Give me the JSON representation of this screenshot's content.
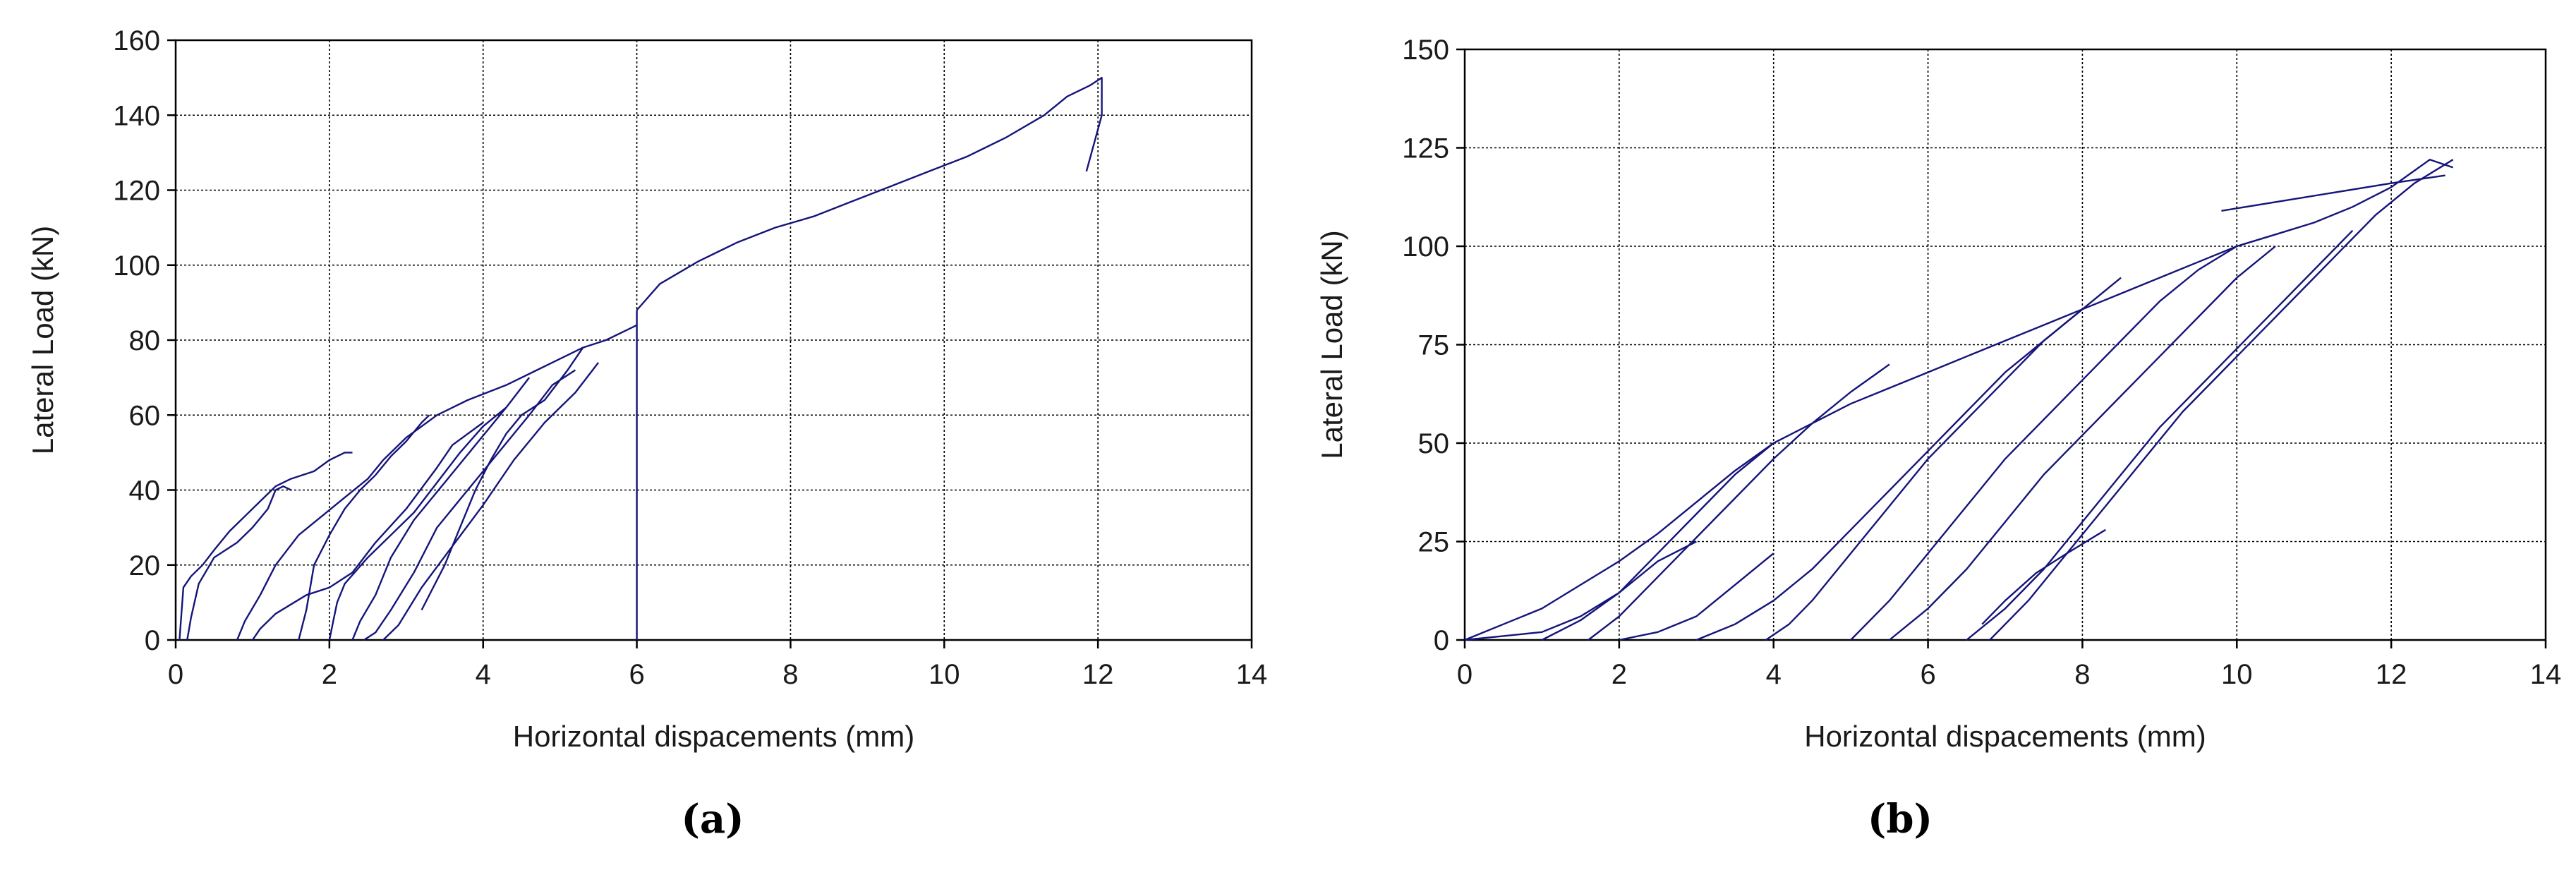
{
  "chart_data": [
    {
      "type": "line",
      "panel_label": "(a)",
      "xlabel": "Horizontal dispacements  (mm)",
      "ylabel": "Lateral Load (kN)",
      "xlim": [
        0,
        14
      ],
      "ylim": [
        0,
        160
      ],
      "xticks": [
        0,
        2,
        4,
        6,
        8,
        10,
        12,
        14
      ],
      "yticks": [
        0,
        20,
        40,
        60,
        80,
        100,
        120,
        140,
        160
      ],
      "grid": true,
      "color": "#15157a",
      "series": [
        {
          "x": [
            0.05,
            0.1,
            0.2,
            0.35,
            0.5,
            0.7,
            0.9,
            1.1,
            1.3,
            1.5,
            1.8,
            2.0,
            2.2,
            2.3
          ],
          "y": [
            0,
            14,
            17,
            20,
            24,
            29,
            33,
            37,
            41,
            43,
            45,
            48,
            50,
            50
          ]
        },
        {
          "x": [
            0.15,
            0.2,
            0.3,
            0.5,
            0.8,
            1.0,
            1.2,
            1.3,
            1.4,
            1.5
          ],
          "y": [
            0,
            6,
            15,
            22,
            26,
            30,
            35,
            40,
            41,
            40
          ]
        },
        {
          "x": [
            0.8,
            0.9,
            1.1,
            1.3,
            1.6,
            1.9,
            2.2,
            2.5,
            2.7,
            3.0,
            3.4,
            3.8,
            4.3,
            4.7,
            5.0,
            5.3,
            5.6,
            6.0
          ],
          "y": [
            0,
            5,
            12,
            20,
            28,
            33,
            38,
            43,
            48,
            54,
            60,
            64,
            68,
            72,
            75,
            78,
            80,
            84
          ]
        },
        {
          "x": [
            1.0,
            1.1,
            1.3,
            1.7,
            2.0,
            2.3,
            2.6,
            3.0,
            3.4,
            3.6,
            4.0
          ],
          "y": [
            0,
            3,
            7,
            12,
            14,
            18,
            26,
            35,
            46,
            52,
            58
          ]
        },
        {
          "x": [
            1.6,
            1.7,
            1.8,
            2.0,
            2.2,
            2.4,
            2.6,
            2.8,
            3.0,
            3.2,
            3.3
          ],
          "y": [
            0,
            8,
            20,
            28,
            35,
            40,
            44,
            49,
            53,
            58,
            60
          ]
        },
        {
          "x": [
            2.0,
            2.05,
            2.1,
            2.2,
            2.5,
            2.8,
            3.1,
            3.4,
            3.7,
            4.0,
            4.3
          ],
          "y": [
            0,
            5,
            10,
            15,
            22,
            28,
            34,
            42,
            50,
            57,
            62
          ]
        },
        {
          "x": [
            2.3,
            2.4,
            2.6,
            2.8,
            3.1,
            3.5,
            3.9,
            4.3,
            4.6
          ],
          "y": [
            0,
            5,
            12,
            22,
            32,
            42,
            52,
            62,
            70
          ]
        },
        {
          "x": [
            2.45,
            2.6,
            2.8,
            3.1,
            3.4,
            3.8,
            4.2,
            4.6,
            4.9,
            5.2
          ],
          "y": [
            0,
            2,
            8,
            18,
            30,
            40,
            50,
            60,
            68,
            72
          ]
        },
        {
          "x": [
            2.7,
            2.9,
            3.2,
            3.6,
            4.0,
            4.4,
            4.8,
            5.2,
            5.5
          ],
          "y": [
            0,
            4,
            14,
            25,
            36,
            48,
            58,
            66,
            74
          ]
        },
        {
          "x": [
            3.2,
            3.5,
            3.7,
            3.9,
            4.1,
            4.3,
            4.5,
            4.8,
            5.1,
            5.3
          ],
          "y": [
            8,
            20,
            30,
            40,
            48,
            55,
            60,
            64,
            72,
            78
          ]
        },
        {
          "x": [
            6.0,
            6.0,
            6.0
          ],
          "y": [
            0,
            45,
            88
          ]
        },
        {
          "x": [
            6.0,
            6.3,
            6.8,
            7.3,
            7.8,
            8.3,
            8.8,
            9.3,
            9.8,
            10.3,
            10.8,
            11.3,
            11.6,
            11.9,
            12.05,
            12.05,
            11.85
          ],
          "y": [
            88,
            95,
            101,
            106,
            110,
            113,
            117,
            121,
            125,
            129,
            134,
            140,
            145,
            148,
            150,
            140,
            125
          ]
        }
      ]
    },
    {
      "type": "line",
      "panel_label": "(b)",
      "xlabel": "Horizontal dispacements  (mm)",
      "ylabel": "Lateral Load (kN)",
      "xlim": [
        0,
        14
      ],
      "ylim": [
        0,
        150
      ],
      "xticks": [
        0,
        2,
        4,
        6,
        8,
        10,
        12,
        14
      ],
      "yticks": [
        0,
        25,
        50,
        75,
        100,
        125,
        150
      ],
      "grid": true,
      "color": "#15157a",
      "series": [
        {
          "x": [
            0.0,
            0.5,
            1.0,
            1.5,
            2.0,
            2.5,
            3.0,
            3.5,
            4.0,
            4.5,
            5.0,
            5.5,
            6.0,
            6.5,
            7.0,
            7.5,
            8.0,
            8.5,
            9.0,
            9.5,
            10.0,
            10.5,
            11.0,
            11.5,
            12.0,
            12.5,
            12.8
          ],
          "y": [
            0,
            4,
            8,
            14,
            20,
            27,
            35,
            43,
            50,
            55,
            60,
            64,
            68,
            72,
            76,
            80,
            84,
            88,
            92,
            96,
            100,
            103,
            106,
            110,
            115,
            122,
            120
          ]
        },
        {
          "x": [
            0.0,
            1.0,
            1.5,
            2.0,
            2.5,
            3.0
          ],
          "y": [
            0,
            2,
            6,
            12,
            20,
            25
          ]
        },
        {
          "x": [
            1.0,
            1.5,
            2.0,
            2.5,
            3.0,
            3.5,
            4.0
          ],
          "y": [
            0,
            5,
            12,
            22,
            32,
            42,
            50
          ]
        },
        {
          "x": [
            1.6,
            2.0,
            2.5,
            3.0,
            3.5,
            4.0,
            4.5,
            5.0,
            5.5
          ],
          "y": [
            0,
            6,
            16,
            26,
            36,
            46,
            55,
            63,
            70
          ]
        },
        {
          "x": [
            2.0,
            2.5,
            3.0,
            3.5,
            4.0
          ],
          "y": [
            0,
            2,
            6,
            14,
            22
          ]
        },
        {
          "x": [
            3.0,
            3.5,
            4.0,
            4.5,
            5.0,
            5.5,
            6.0,
            6.5,
            7.0,
            7.5,
            8.0
          ],
          "y": [
            0,
            4,
            10,
            18,
            28,
            38,
            48,
            58,
            68,
            76,
            84
          ]
        },
        {
          "x": [
            3.9,
            4.2,
            4.5,
            5.0,
            5.5,
            6.0,
            6.5,
            7.0,
            7.5,
            8.0,
            8.5
          ],
          "y": [
            0,
            4,
            10,
            22,
            34,
            46,
            56,
            66,
            76,
            84,
            92
          ]
        },
        {
          "x": [
            5.0,
            5.5,
            6.0,
            6.5,
            7.0,
            7.5,
            8.0,
            8.5,
            9.0,
            9.5,
            10.0
          ],
          "y": [
            0,
            10,
            22,
            34,
            46,
            56,
            66,
            76,
            86,
            94,
            100
          ]
        },
        {
          "x": [
            5.5,
            6.0,
            6.5,
            7.0,
            7.5,
            8.0,
            8.5,
            9.0,
            9.5,
            10.0,
            10.5
          ],
          "y": [
            0,
            8,
            18,
            30,
            42,
            52,
            62,
            72,
            82,
            92,
            100
          ]
        },
        {
          "x": [
            6.5,
            7.0,
            7.5,
            8.0,
            8.5,
            9.0,
            9.5,
            10.0,
            10.5,
            11.0,
            11.5
          ],
          "y": [
            0,
            8,
            18,
            30,
            42,
            54,
            64,
            74,
            84,
            94,
            104
          ]
        },
        {
          "x": [
            6.8,
            7.3,
            7.8,
            8.3,
            8.8,
            9.3,
            9.8,
            10.3,
            10.8,
            11.3,
            11.8,
            12.3,
            12.8
          ],
          "y": [
            0,
            10,
            22,
            34,
            46,
            58,
            68,
            78,
            88,
            98,
            108,
            116,
            122
          ]
        },
        {
          "x": [
            6.7,
            7.0,
            7.4,
            7.8,
            8.3
          ],
          "y": [
            4,
            10,
            17,
            22,
            28
          ]
        },
        {
          "x": [
            9.8,
            12.0,
            12.7
          ],
          "y": [
            109,
            116,
            118
          ]
        }
      ]
    }
  ]
}
